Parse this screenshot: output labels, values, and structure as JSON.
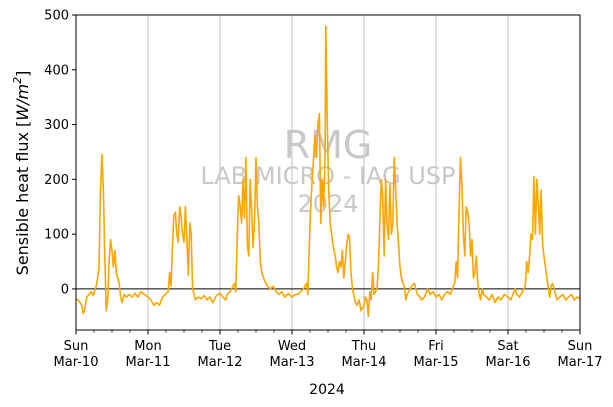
{
  "chart_data": {
    "type": "line",
    "ylabel_prefix": "Sensible heat flux [",
    "ylabel_unit": "W/m",
    "ylabel_sup": "2",
    "ylabel_suffix": "]",
    "xlabel": "2024",
    "ylim": [
      -75,
      500
    ],
    "yticks": [
      0,
      100,
      200,
      300,
      400,
      500
    ],
    "ytick_labels": [
      "0",
      "100",
      "200",
      "300",
      "400",
      "500"
    ],
    "xlim": [
      0,
      7
    ],
    "xticks": [
      {
        "day": 0,
        "line1": "Sun",
        "line2": "Mar-10"
      },
      {
        "day": 1,
        "line1": "Mon",
        "line2": "Mar-11"
      },
      {
        "day": 2,
        "line1": "Tue",
        "line2": "Mar-12"
      },
      {
        "day": 3,
        "line1": "Wed",
        "line2": "Mar-13"
      },
      {
        "day": 4,
        "line1": "Thu",
        "line2": "Mar-14"
      },
      {
        "day": 5,
        "line1": "Fri",
        "line2": "Mar-15"
      },
      {
        "day": 6,
        "line1": "Sat",
        "line2": "Mar-16"
      },
      {
        "day": 7,
        "line1": "Sun",
        "line2": "Mar-17"
      }
    ],
    "grid": "vertical at day ticks",
    "zero_line": 0,
    "line_color": "#FFA500",
    "watermark": [
      "RMG",
      "LAB MICRO - IAG USP",
      "2024"
    ],
    "series": [
      {
        "points": [
          [
            0.0,
            -18
          ],
          [
            0.04,
            -22
          ],
          [
            0.08,
            -30
          ],
          [
            0.1,
            -45
          ],
          [
            0.12,
            -38
          ],
          [
            0.15,
            -15
          ],
          [
            0.18,
            -10
          ],
          [
            0.21,
            -5
          ],
          [
            0.24,
            -12
          ],
          [
            0.28,
            5
          ],
          [
            0.3,
            20
          ],
          [
            0.32,
            40
          ],
          [
            0.34,
            180
          ],
          [
            0.36,
            245
          ],
          [
            0.38,
            180
          ],
          [
            0.4,
            60
          ],
          [
            0.42,
            -40
          ],
          [
            0.44,
            -20
          ],
          [
            0.46,
            50
          ],
          [
            0.48,
            90
          ],
          [
            0.5,
            70
          ],
          [
            0.52,
            40
          ],
          [
            0.54,
            70
          ],
          [
            0.56,
            30
          ],
          [
            0.58,
            20
          ],
          [
            0.6,
            10
          ],
          [
            0.62,
            -15
          ],
          [
            0.64,
            -25
          ],
          [
            0.67,
            -10
          ],
          [
            0.7,
            -15
          ],
          [
            0.74,
            -10
          ],
          [
            0.78,
            -15
          ],
          [
            0.82,
            -8
          ],
          [
            0.86,
            -15
          ],
          [
            0.9,
            -5
          ],
          [
            0.95,
            -10
          ],
          [
            1.0,
            -15
          ],
          [
            1.04,
            -20
          ],
          [
            1.08,
            -30
          ],
          [
            1.12,
            -25
          ],
          [
            1.16,
            -30
          ],
          [
            1.2,
            -15
          ],
          [
            1.24,
            -10
          ],
          [
            1.28,
            -5
          ],
          [
            1.3,
            30
          ],
          [
            1.32,
            5
          ],
          [
            1.34,
            80
          ],
          [
            1.36,
            135
          ],
          [
            1.38,
            140
          ],
          [
            1.4,
            100
          ],
          [
            1.42,
            85
          ],
          [
            1.44,
            150
          ],
          [
            1.46,
            130
          ],
          [
            1.48,
            100
          ],
          [
            1.5,
            85
          ],
          [
            1.52,
            150
          ],
          [
            1.54,
            90
          ],
          [
            1.56,
            25
          ],
          [
            1.58,
            120
          ],
          [
            1.6,
            100
          ],
          [
            1.62,
            0
          ],
          [
            1.64,
            -10
          ],
          [
            1.66,
            -20
          ],
          [
            1.7,
            -15
          ],
          [
            1.74,
            -18
          ],
          [
            1.78,
            -12
          ],
          [
            1.82,
            -20
          ],
          [
            1.86,
            -15
          ],
          [
            1.9,
            -25
          ],
          [
            1.95,
            -12
          ],
          [
            2.0,
            -8
          ],
          [
            2.04,
            -15
          ],
          [
            2.08,
            -20
          ],
          [
            2.1,
            -10
          ],
          [
            2.14,
            -5
          ],
          [
            2.18,
            5
          ],
          [
            2.2,
            10
          ],
          [
            2.22,
            -5
          ],
          [
            2.24,
            100
          ],
          [
            2.26,
            170
          ],
          [
            2.28,
            150
          ],
          [
            2.3,
            120
          ],
          [
            2.32,
            200
          ],
          [
            2.34,
            130
          ],
          [
            2.36,
            240
          ],
          [
            2.38,
            80
          ],
          [
            2.4,
            60
          ],
          [
            2.42,
            200
          ],
          [
            2.44,
            140
          ],
          [
            2.46,
            75
          ],
          [
            2.48,
            130
          ],
          [
            2.5,
            240
          ],
          [
            2.52,
            150
          ],
          [
            2.54,
            120
          ],
          [
            2.56,
            50
          ],
          [
            2.58,
            30
          ],
          [
            2.62,
            15
          ],
          [
            2.66,
            5
          ],
          [
            2.7,
            0
          ],
          [
            2.74,
            5
          ],
          [
            2.78,
            -5
          ],
          [
            2.82,
            -10
          ],
          [
            2.86,
            -5
          ],
          [
            2.9,
            -15
          ],
          [
            2.95,
            -8
          ],
          [
            3.0,
            -15
          ],
          [
            3.04,
            -10
          ],
          [
            3.08,
            -10
          ],
          [
            3.12,
            -5
          ],
          [
            3.16,
            0
          ],
          [
            3.2,
            10
          ],
          [
            3.22,
            -10
          ],
          [
            3.24,
            80
          ],
          [
            3.26,
            150
          ],
          [
            3.28,
            200
          ],
          [
            3.3,
            240
          ],
          [
            3.32,
            280
          ],
          [
            3.34,
            240
          ],
          [
            3.36,
            300
          ],
          [
            3.38,
            320
          ],
          [
            3.4,
            120
          ],
          [
            3.42,
            200
          ],
          [
            3.44,
            150
          ],
          [
            3.46,
            250
          ],
          [
            3.47,
            480
          ],
          [
            3.49,
            300
          ],
          [
            3.51,
            180
          ],
          [
            3.53,
            120
          ],
          [
            3.55,
            100
          ],
          [
            3.57,
            80
          ],
          [
            3.6,
            60
          ],
          [
            3.62,
            40
          ],
          [
            3.64,
            30
          ],
          [
            3.66,
            50
          ],
          [
            3.68,
            40
          ],
          [
            3.7,
            70
          ],
          [
            3.72,
            20
          ],
          [
            3.74,
            50
          ],
          [
            3.76,
            80
          ],
          [
            3.78,
            100
          ],
          [
            3.8,
            90
          ],
          [
            3.82,
            30
          ],
          [
            3.84,
            0
          ],
          [
            3.88,
            -25
          ],
          [
            3.9,
            -30
          ],
          [
            3.93,
            -20
          ],
          [
            3.96,
            -40
          ],
          [
            4.0,
            -30
          ],
          [
            4.02,
            -15
          ],
          [
            4.04,
            -20
          ],
          [
            4.06,
            -50
          ],
          [
            4.08,
            -5
          ],
          [
            4.1,
            -20
          ],
          [
            4.12,
            30
          ],
          [
            4.14,
            -10
          ],
          [
            4.16,
            -5
          ],
          [
            4.18,
            0
          ],
          [
            4.2,
            40
          ],
          [
            4.22,
            120
          ],
          [
            4.24,
            200
          ],
          [
            4.26,
            170
          ],
          [
            4.28,
            60
          ],
          [
            4.3,
            200
          ],
          [
            4.32,
            120
          ],
          [
            4.34,
            90
          ],
          [
            4.36,
            190
          ],
          [
            4.38,
            100
          ],
          [
            4.4,
            120
          ],
          [
            4.42,
            240
          ],
          [
            4.44,
            180
          ],
          [
            4.46,
            120
          ],
          [
            4.48,
            80
          ],
          [
            4.5,
            40
          ],
          [
            4.52,
            20
          ],
          [
            4.54,
            10
          ],
          [
            4.56,
            5
          ],
          [
            4.58,
            -20
          ],
          [
            4.6,
            -10
          ],
          [
            4.62,
            -5
          ],
          [
            4.66,
            5
          ],
          [
            4.7,
            10
          ],
          [
            4.74,
            -10
          ],
          [
            4.78,
            -15
          ],
          [
            4.8,
            -20
          ],
          [
            4.84,
            -15
          ],
          [
            4.88,
            0
          ],
          [
            4.92,
            -10
          ],
          [
            4.96,
            -5
          ],
          [
            5.0,
            -15
          ],
          [
            5.04,
            -10
          ],
          [
            5.08,
            -20
          ],
          [
            5.12,
            -10
          ],
          [
            5.16,
            -5
          ],
          [
            5.2,
            -10
          ],
          [
            5.24,
            5
          ],
          [
            5.26,
            10
          ],
          [
            5.28,
            50
          ],
          [
            5.3,
            20
          ],
          [
            5.32,
            140
          ],
          [
            5.34,
            240
          ],
          [
            5.36,
            190
          ],
          [
            5.38,
            100
          ],
          [
            5.4,
            60
          ],
          [
            5.42,
            150
          ],
          [
            5.44,
            140
          ],
          [
            5.46,
            120
          ],
          [
            5.48,
            60
          ],
          [
            5.5,
            90
          ],
          [
            5.52,
            20
          ],
          [
            5.54,
            30
          ],
          [
            5.56,
            60
          ],
          [
            5.58,
            10
          ],
          [
            5.6,
            -10
          ],
          [
            5.62,
            -20
          ],
          [
            5.64,
            0
          ],
          [
            5.66,
            -10
          ],
          [
            5.7,
            -15
          ],
          [
            5.74,
            -20
          ],
          [
            5.78,
            -10
          ],
          [
            5.82,
            -25
          ],
          [
            5.86,
            -15
          ],
          [
            5.9,
            -20
          ],
          [
            5.95,
            -10
          ],
          [
            6.0,
            -15
          ],
          [
            6.04,
            -20
          ],
          [
            6.08,
            -5
          ],
          [
            6.1,
            0
          ],
          [
            6.12,
            -10
          ],
          [
            6.16,
            -15
          ],
          [
            6.2,
            -5
          ],
          [
            6.24,
            5
          ],
          [
            6.26,
            50
          ],
          [
            6.28,
            30
          ],
          [
            6.3,
            60
          ],
          [
            6.32,
            100
          ],
          [
            6.34,
            90
          ],
          [
            6.36,
            205
          ],
          [
            6.38,
            100
          ],
          [
            6.4,
            200
          ],
          [
            6.42,
            160
          ],
          [
            6.44,
            100
          ],
          [
            6.46,
            180
          ],
          [
            6.48,
            80
          ],
          [
            6.5,
            60
          ],
          [
            6.52,
            40
          ],
          [
            6.54,
            20
          ],
          [
            6.56,
            0
          ],
          [
            6.58,
            -15
          ],
          [
            6.6,
            5
          ],
          [
            6.62,
            10
          ],
          [
            6.64,
            0
          ],
          [
            6.68,
            -20
          ],
          [
            6.72,
            -15
          ],
          [
            6.76,
            -10
          ],
          [
            6.8,
            -20
          ],
          [
            6.84,
            -15
          ],
          [
            6.88,
            -10
          ],
          [
            6.92,
            -20
          ],
          [
            6.96,
            -15
          ],
          [
            7.0,
            -18
          ]
        ]
      }
    ]
  }
}
